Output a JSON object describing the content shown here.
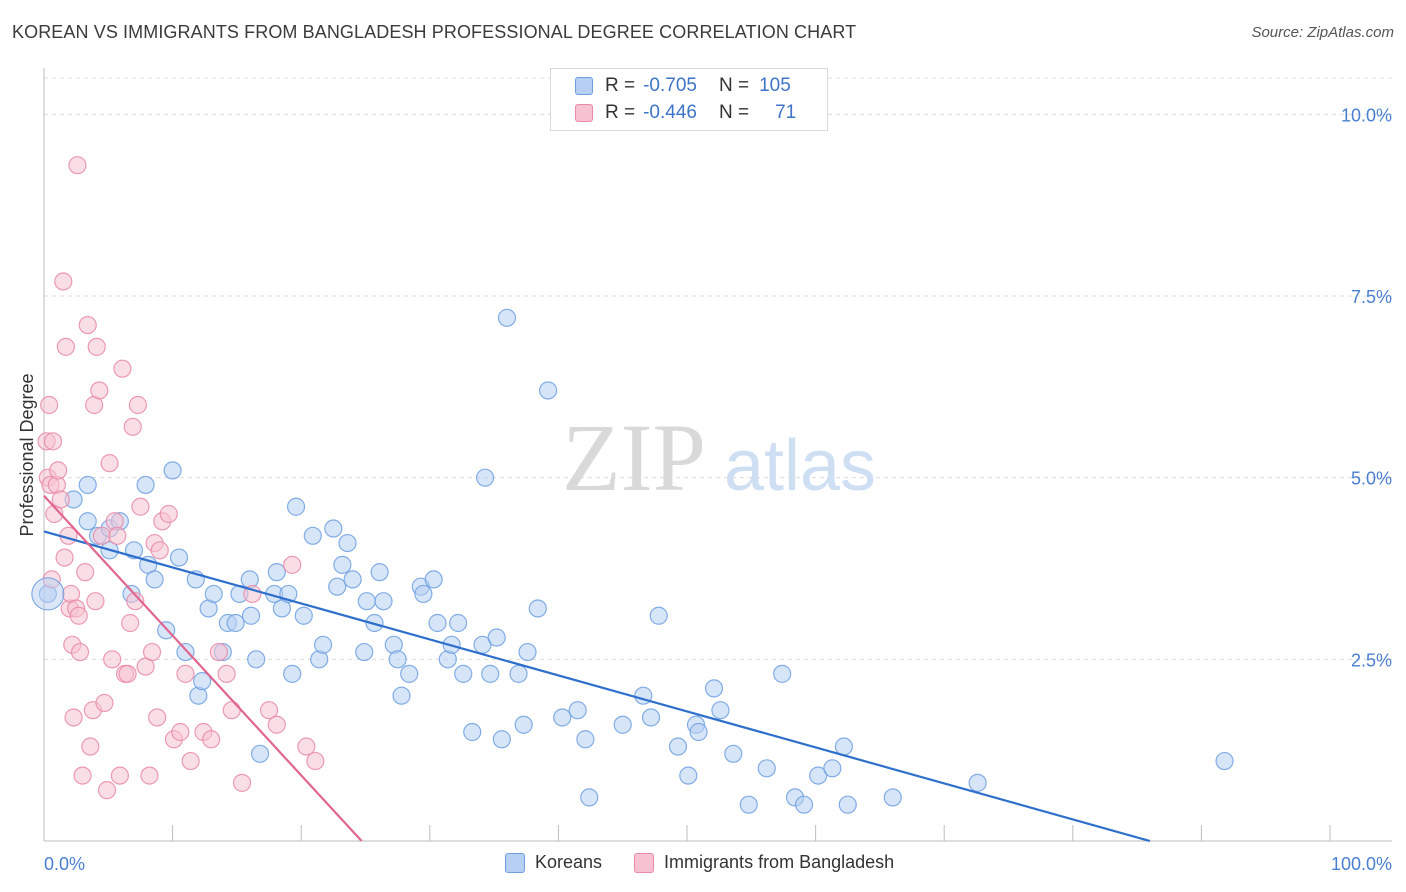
{
  "title": "KOREAN VS IMMIGRANTS FROM BANGLADESH PROFESSIONAL DEGREE CORRELATION CHART",
  "source": "Source: ZipAtlas.com",
  "watermark": {
    "zip": "ZIP",
    "atlas": "atlas"
  },
  "legend": {
    "rows": [
      {
        "r_label": "R =",
        "r_value": "-0.705",
        "n_label": "N =",
        "n_value": "105",
        "color": "#6fa0e0",
        "fill": "#b7cff2"
      },
      {
        "r_label": "R =",
        "r_value": "-0.446",
        "n_label": "N =",
        "n_value": "71",
        "color": "#e88aa8",
        "fill": "#f6c2d2"
      }
    ]
  },
  "bottom_legend": [
    "Koreans",
    "Immigrants from Bangladesh"
  ],
  "chart_data": {
    "type": "scatter",
    "title": "KOREAN VS IMMIGRANTS FROM BANGLADESH PROFESSIONAL DEGREE CORRELATION CHART",
    "xlabel": "",
    "ylabel": "Professional Degree",
    "xlim": [
      0,
      100
    ],
    "ylim": [
      0,
      10.5
    ],
    "x_tick_labels": [
      "0.0%",
      "100.0%"
    ],
    "y_ticks": [
      2.5,
      5.0,
      7.5,
      10.0
    ],
    "y_tick_labels": [
      "2.5%",
      "5.0%",
      "7.5%",
      "10.0%"
    ],
    "grid": "horizontal dashed",
    "legend_position": "top-center",
    "series": [
      {
        "name": "Koreans",
        "color": "#6fa0e0",
        "fill": "#b7cff2",
        "trend": {
          "x": [
            0,
            86
          ],
          "y": [
            4.26,
            0
          ]
        },
        "points": [
          [
            0.3,
            3.4
          ],
          [
            2.3,
            4.7
          ],
          [
            3.4,
            4.4
          ],
          [
            3.4,
            4.9
          ],
          [
            4.2,
            4.2
          ],
          [
            5.1,
            4.3
          ],
          [
            5.1,
            4.0
          ],
          [
            5.9,
            4.4
          ],
          [
            6.8,
            3.4
          ],
          [
            7.9,
            4.9
          ],
          [
            7.0,
            4.0
          ],
          [
            8.1,
            3.8
          ],
          [
            8.6,
            3.6
          ],
          [
            9.5,
            2.9
          ],
          [
            10.0,
            5.1
          ],
          [
            10.5,
            3.9
          ],
          [
            11.0,
            2.6
          ],
          [
            11.8,
            3.6
          ],
          [
            12.0,
            2.0
          ],
          [
            12.3,
            2.2
          ],
          [
            12.8,
            3.2
          ],
          [
            13.2,
            3.4
          ],
          [
            13.9,
            2.6
          ],
          [
            14.3,
            3.0
          ],
          [
            14.9,
            3.0
          ],
          [
            15.2,
            3.4
          ],
          [
            16.0,
            3.6
          ],
          [
            16.1,
            3.1
          ],
          [
            16.5,
            2.5
          ],
          [
            16.8,
            1.2
          ],
          [
            17.9,
            3.4
          ],
          [
            18.1,
            3.7
          ],
          [
            18.5,
            3.2
          ],
          [
            19.0,
            3.4
          ],
          [
            19.3,
            2.3
          ],
          [
            19.6,
            4.6
          ],
          [
            20.2,
            3.1
          ],
          [
            20.9,
            4.2
          ],
          [
            21.4,
            2.5
          ],
          [
            21.7,
            2.7
          ],
          [
            22.5,
            4.3
          ],
          [
            22.8,
            3.5
          ],
          [
            23.2,
            3.8
          ],
          [
            23.6,
            4.1
          ],
          [
            24.0,
            3.6
          ],
          [
            24.9,
            2.6
          ],
          [
            25.1,
            3.3
          ],
          [
            25.7,
            3.0
          ],
          [
            26.1,
            3.7
          ],
          [
            26.4,
            3.3
          ],
          [
            27.2,
            2.7
          ],
          [
            27.5,
            2.5
          ],
          [
            27.8,
            2.0
          ],
          [
            28.4,
            2.3
          ],
          [
            29.3,
            3.5
          ],
          [
            29.5,
            3.4
          ],
          [
            30.3,
            3.6
          ],
          [
            30.6,
            3.0
          ],
          [
            31.4,
            2.5
          ],
          [
            31.7,
            2.7
          ],
          [
            32.2,
            3.0
          ],
          [
            32.6,
            2.3
          ],
          [
            33.3,
            1.5
          ],
          [
            34.1,
            2.7
          ],
          [
            34.3,
            5.0
          ],
          [
            34.7,
            2.3
          ],
          [
            35.2,
            2.8
          ],
          [
            35.6,
            1.4
          ],
          [
            36.0,
            7.2
          ],
          [
            36.9,
            2.3
          ],
          [
            37.3,
            1.6
          ],
          [
            37.6,
            2.6
          ],
          [
            38.4,
            3.2
          ],
          [
            39.2,
            6.2
          ],
          [
            40.3,
            1.7
          ],
          [
            41.5,
            1.8
          ],
          [
            42.1,
            1.4
          ],
          [
            42.4,
            0.6
          ],
          [
            45.0,
            1.6
          ],
          [
            46.6,
            2.0
          ],
          [
            47.2,
            1.7
          ],
          [
            47.8,
            3.1
          ],
          [
            49.3,
            1.3
          ],
          [
            50.1,
            0.9
          ],
          [
            50.7,
            1.6
          ],
          [
            50.9,
            1.5
          ],
          [
            52.1,
            2.1
          ],
          [
            52.6,
            1.8
          ],
          [
            53.6,
            1.2
          ],
          [
            54.8,
            0.5
          ],
          [
            56.2,
            1.0
          ],
          [
            57.4,
            2.3
          ],
          [
            58.4,
            0.6
          ],
          [
            59.1,
            0.5
          ],
          [
            60.2,
            0.9
          ],
          [
            61.3,
            1.0
          ],
          [
            62.2,
            1.3
          ],
          [
            62.5,
            0.5
          ],
          [
            66.0,
            0.6
          ],
          [
            72.6,
            0.8
          ],
          [
            91.8,
            1.1
          ]
        ]
      },
      {
        "name": "Immigrants from Bangladesh",
        "color": "#e88aa8",
        "fill": "#f6c2d2",
        "trend": {
          "x": [
            0,
            24.7
          ],
          "y": [
            4.75,
            0
          ]
        },
        "points": [
          [
            0.2,
            5.5
          ],
          [
            0.3,
            5.0
          ],
          [
            0.4,
            6.0
          ],
          [
            0.5,
            4.9
          ],
          [
            0.6,
            3.6
          ],
          [
            0.7,
            5.5
          ],
          [
            0.8,
            4.5
          ],
          [
            1.0,
            4.9
          ],
          [
            1.1,
            5.1
          ],
          [
            1.3,
            4.7
          ],
          [
            1.5,
            7.7
          ],
          [
            1.6,
            3.9
          ],
          [
            1.7,
            6.8
          ],
          [
            1.9,
            4.2
          ],
          [
            2.0,
            3.2
          ],
          [
            2.1,
            3.4
          ],
          [
            2.2,
            2.7
          ],
          [
            2.3,
            1.7
          ],
          [
            2.5,
            3.2
          ],
          [
            2.6,
            9.3
          ],
          [
            2.7,
            3.1
          ],
          [
            2.8,
            2.6
          ],
          [
            3.0,
            0.9
          ],
          [
            3.2,
            3.7
          ],
          [
            3.4,
            7.1
          ],
          [
            3.6,
            1.3
          ],
          [
            3.8,
            1.8
          ],
          [
            3.9,
            6.0
          ],
          [
            4.0,
            3.3
          ],
          [
            4.1,
            6.8
          ],
          [
            4.3,
            6.2
          ],
          [
            4.5,
            4.2
          ],
          [
            4.7,
            1.9
          ],
          [
            4.9,
            0.7
          ],
          [
            5.1,
            5.2
          ],
          [
            5.3,
            2.5
          ],
          [
            5.5,
            4.4
          ],
          [
            5.7,
            4.2
          ],
          [
            5.9,
            0.9
          ],
          [
            6.1,
            6.5
          ],
          [
            6.3,
            2.3
          ],
          [
            6.5,
            2.3
          ],
          [
            6.7,
            3.0
          ],
          [
            6.9,
            5.7
          ],
          [
            7.1,
            3.3
          ],
          [
            7.3,
            6.0
          ],
          [
            7.5,
            4.6
          ],
          [
            7.9,
            2.4
          ],
          [
            8.2,
            0.9
          ],
          [
            8.4,
            2.6
          ],
          [
            8.6,
            4.1
          ],
          [
            8.8,
            1.7
          ],
          [
            9.0,
            4.0
          ],
          [
            9.2,
            4.4
          ],
          [
            9.7,
            4.5
          ],
          [
            10.1,
            1.4
          ],
          [
            10.6,
            1.5
          ],
          [
            11.0,
            2.3
          ],
          [
            11.4,
            1.1
          ],
          [
            12.4,
            1.5
          ],
          [
            13.0,
            1.4
          ],
          [
            13.6,
            2.6
          ],
          [
            14.2,
            2.3
          ],
          [
            14.6,
            1.8
          ],
          [
            15.4,
            0.8
          ],
          [
            16.2,
            3.4
          ],
          [
            17.5,
            1.8
          ],
          [
            18.1,
            1.6
          ],
          [
            19.3,
            3.8
          ],
          [
            20.4,
            1.3
          ],
          [
            21.1,
            1.1
          ]
        ]
      }
    ]
  }
}
